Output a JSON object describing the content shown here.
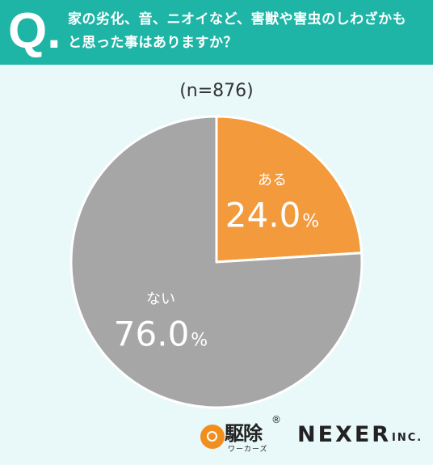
{
  "header": {
    "q_mark": "Q.",
    "question_line1": "家の劣化、音、ニオイなど、害獣や害虫のしわざかも",
    "question_line2": "と思った事はありますか？"
  },
  "sample_size": "(n=876)",
  "chart_data": {
    "type": "pie",
    "categories": [
      "ある",
      "ない"
    ],
    "values": [
      24.0,
      76.0
    ],
    "value_labels": [
      "24.0",
      "76.0"
    ],
    "unit": "%",
    "colors": [
      "#f39a3c",
      "#a6a6a6"
    ],
    "start": "12 o'clock, clockwise"
  },
  "footer": {
    "logo_main": "駆除",
    "logo_reg": "®",
    "logo_sub": "ワーカーズ",
    "company": "NEXER",
    "company_suffix": "INC."
  },
  "colors": {
    "header_bg": "#1fb5a6",
    "page_bg": "#e9f8f8"
  }
}
